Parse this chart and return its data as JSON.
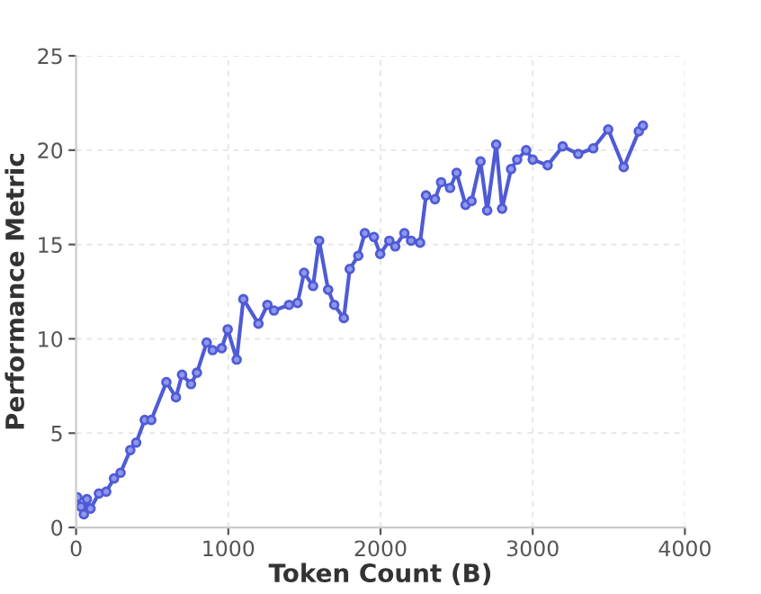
{
  "chart_data": {
    "type": "line",
    "xlabel": "Token Count (B)",
    "ylabel": "Performance Metric",
    "xlim": [
      0,
      4000
    ],
    "ylim": [
      0,
      25
    ],
    "xticks": [
      0,
      1000,
      2000,
      3000,
      4000
    ],
    "yticks": [
      0,
      5,
      10,
      15,
      20,
      25
    ],
    "grid": true,
    "marker": "circle",
    "line_style": "solid",
    "series": [
      {
        "color": "#4f5bd5",
        "x": [
          8,
          32,
          51,
          71,
          95,
          150,
          198,
          249,
          292,
          356,
          395,
          451,
          494,
          593,
          656,
          696,
          755,
          794,
          858,
          897,
          957,
          996,
          1055,
          1099,
          1198,
          1257,
          1300,
          1399,
          1455,
          1498,
          1557,
          1597,
          1656,
          1696,
          1759,
          1798,
          1854,
          1897,
          1957,
          1998,
          2058,
          2097,
          2157,
          2201,
          2260,
          2299,
          2358,
          2398,
          2457,
          2500,
          2559,
          2598,
          2657,
          2701,
          2760,
          2799,
          2858,
          2898,
          2957,
          3000,
          3098,
          3197,
          3299,
          3398,
          3496,
          3598,
          3697,
          3724
        ],
        "values": [
          1.6,
          1.1,
          0.7,
          1.5,
          1.0,
          1.8,
          1.9,
          2.6,
          2.9,
          4.1,
          4.5,
          5.7,
          5.7,
          7.7,
          6.9,
          8.1,
          7.6,
          8.2,
          9.8,
          9.4,
          9.5,
          10.5,
          8.9,
          12.1,
          10.8,
          11.8,
          11.5,
          11.8,
          11.9,
          13.5,
          12.8,
          15.2,
          12.6,
          11.8,
          11.1,
          13.7,
          14.4,
          15.6,
          15.4,
          14.5,
          15.2,
          14.9,
          15.6,
          15.2,
          15.1,
          17.6,
          17.4,
          18.3,
          18.0,
          18.8,
          17.1,
          17.3,
          19.4,
          16.8,
          20.3,
          16.9,
          19.0,
          19.5,
          20.0,
          19.5,
          19.2,
          20.2,
          19.8,
          20.1,
          21.1,
          19.1,
          21.0,
          21.3
        ]
      }
    ]
  }
}
